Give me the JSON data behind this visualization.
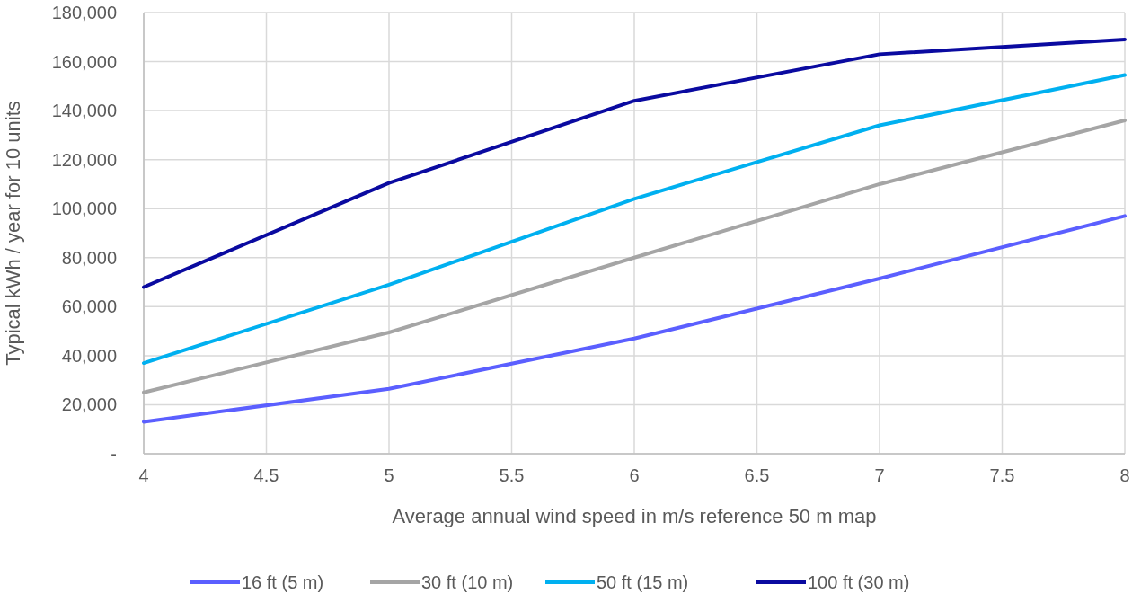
{
  "chart_data": {
    "type": "line",
    "xlabel": "Average annual wind speed in m/s reference 50 m map",
    "ylabel": "Typical kWh / year for 10 units",
    "x": [
      4,
      5,
      6,
      7,
      8
    ],
    "series": [
      {
        "name": "16 ft (5 m)",
        "color": "#5b5fff",
        "values": [
          13000,
          26500,
          47000,
          71500,
          97000
        ]
      },
      {
        "name": "30 ft (10 m)",
        "color": "#a5a5a5",
        "values": [
          25000,
          49500,
          80000,
          110000,
          136000
        ]
      },
      {
        "name": "50 ft (15 m)",
        "color": "#00b0f0",
        "values": [
          37000,
          69000,
          104000,
          134000,
          154500
        ]
      },
      {
        "name": "100 ft (30 m)",
        "color": "#0a0aa0",
        "values": [
          68000,
          110500,
          144000,
          163000,
          169000
        ]
      }
    ],
    "xlim": [
      4,
      8
    ],
    "xticks": [
      4,
      4.5,
      5,
      5.5,
      6,
      6.5,
      7,
      7.5,
      8
    ],
    "ylim": [
      0,
      180000
    ],
    "yticks": [
      {
        "value": 0,
        "label": "-"
      },
      {
        "value": 20000,
        "label": "20,000"
      },
      {
        "value": 40000,
        "label": "40,000"
      },
      {
        "value": 60000,
        "label": "60,000"
      },
      {
        "value": 80000,
        "label": "80,000"
      },
      {
        "value": 100000,
        "label": "100,000"
      },
      {
        "value": 120000,
        "label": "120,000"
      },
      {
        "value": 140000,
        "label": "140,000"
      },
      {
        "value": 160000,
        "label": "160,000"
      },
      {
        "value": 180000,
        "label": "180,000"
      }
    ],
    "grid": true,
    "legend": "bottom",
    "marker": "none",
    "line_style": "solid"
  }
}
